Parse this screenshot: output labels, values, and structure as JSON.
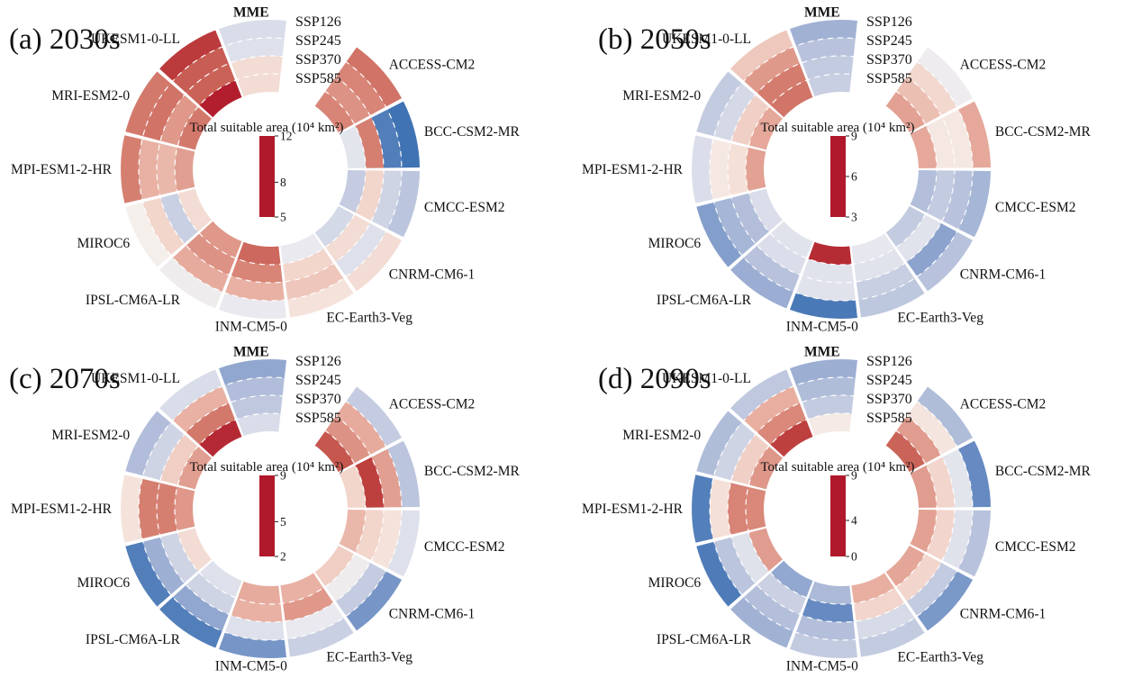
{
  "figure": {
    "background": "#ffffff"
  },
  "colormap": {
    "stops": [
      [
        0.0,
        "#b0182b"
      ],
      [
        0.125,
        "#c04a44"
      ],
      [
        0.25,
        "#d47c6e"
      ],
      [
        0.375,
        "#e9b3a5"
      ],
      [
        0.47,
        "#f5e2da"
      ],
      [
        0.5,
        "#f5efec"
      ],
      [
        0.53,
        "#e8e9ef"
      ],
      [
        0.625,
        "#c6cde1"
      ],
      [
        0.75,
        "#9badd2"
      ],
      [
        0.875,
        "#6288c0"
      ],
      [
        1.0,
        "#2f68ad"
      ]
    ]
  },
  "chart_data": [
    {
      "type": "heatmap",
      "title": "(a) 2030s",
      "legend_title": "Total suitable area (10⁴ km²)",
      "scale": {
        "min": 5,
        "max": 12,
        "ticks": [
          12,
          8,
          5
        ]
      },
      "rings": [
        "SSP126",
        "SSP245",
        "SSP370",
        "SSP585"
      ],
      "models": [
        "MME",
        "ACCESS-CM2",
        "BCC-CSM2-MR",
        "CMCC-ESM2",
        "CNRM-CM6-1",
        "EC-Earth3-Veg",
        "INM-CM5-0",
        "IPSL-CM6A-LR",
        "MIROC6",
        "MPI-ESM1-2-HR",
        "MRI-ESM2-0",
        "UKESM1-0-LL"
      ],
      "values": {
        "MME": [
          9.0,
          8.9,
          8.2,
          8.2
        ],
        "ACCESS-CM2": [
          6.6,
          6.9,
          7.1,
          6.9
        ],
        "BCC-CSM2-MR": [
          11.7,
          11.4,
          6.8,
          8.8
        ],
        "CMCC-ESM2": [
          9.6,
          9.2,
          8.1,
          9.4
        ],
        "CNRM-CM6-1": [
          8.2,
          8.9,
          8.2,
          9.1
        ],
        "EC-Earth3-Veg": [
          8.3,
          7.9,
          8.1,
          8.7
        ],
        "INM-CM5-0": [
          8.7,
          7.6,
          6.9,
          6.4
        ],
        "IPSL-CM6A-LR": [
          8.6,
          7.5,
          7.1,
          7.2
        ],
        "MIROC6": [
          8.5,
          8.1,
          9.3,
          8.2
        ],
        "MPI-ESM1-2-HR": [
          6.8,
          7.6,
          7.7,
          7.3
        ],
        "MRI-ESM2-0": [
          6.7,
          6.6,
          7.2,
          6.7
        ],
        "UKESM1-0-LL": [
          5.6,
          6.2,
          6.3,
          5.1
        ]
      }
    },
    {
      "type": "heatmap",
      "title": "(b) 2050s",
      "legend_title": "Total suitable area (10⁴ km²)",
      "scale": {
        "min": 3,
        "max": 9,
        "ticks": [
          9,
          6,
          3
        ]
      },
      "rings": [
        "SSP126",
        "SSP245",
        "SSP370",
        "SSP585"
      ],
      "models": [
        "MME",
        "ACCESS-CM2",
        "BCC-CSM2-MR",
        "CMCC-ESM2",
        "CNRM-CM6-1",
        "EC-Earth3-Veg",
        "INM-CM5-0",
        "IPSL-CM6A-LR",
        "MIROC6",
        "MPI-ESM1-2-HR",
        "MRI-ESM2-0",
        "UKESM1-0-LL"
      ],
      "values": {
        "MME": [
          7.4,
          7.0,
          6.8,
          6.7
        ],
        "ACCESS-CM2": [
          6.1,
          5.7,
          5.4,
          5.0
        ],
        "BCC-CSM2-MR": [
          5.1,
          5.9,
          5.9,
          5.1
        ],
        "CMCC-ESM2": [
          7.3,
          7.0,
          6.8,
          7.1
        ],
        "CNRM-CM6-1": [
          7.0,
          7.7,
          6.3,
          6.8
        ],
        "EC-Earth3-Veg": [
          6.9,
          6.7,
          6.3,
          6.2
        ],
        "INM-CM5-0": [
          8.6,
          6.3,
          6.3,
          3.3
        ],
        "IPSL-CM6A-LR": [
          7.5,
          7.0,
          6.4,
          6.3
        ],
        "MIROC6": [
          7.8,
          7.3,
          7.1,
          6.4
        ],
        "MPI-ESM1-2-HR": [
          6.4,
          5.9,
          5.8,
          5.0
        ],
        "MRI-ESM2-0": [
          6.8,
          6.5,
          5.6,
          5.1
        ],
        "UKESM1-0-LL": [
          5.5,
          4.9,
          4.5,
          4.4
        ]
      }
    },
    {
      "type": "heatmap",
      "title": "(c) 2070s",
      "legend_title": "Total suitable area (10⁴ km²)",
      "scale": {
        "min": 2,
        "max": 9,
        "ticks": [
          9,
          5,
          2
        ]
      },
      "rings": [
        "SSP126",
        "SSP245",
        "SSP370",
        "SSP585"
      ],
      "models": [
        "MME",
        "ACCESS-CM2",
        "BCC-CSM2-MR",
        "CMCC-ESM2",
        "CNRM-CM6-1",
        "EC-Earth3-Veg",
        "INM-CM5-0",
        "IPSL-CM6A-LR",
        "MIROC6",
        "MPI-ESM1-2-HR",
        "MRI-ESM2-0",
        "UKESM1-0-LL"
      ],
      "values": {
        "MME": [
          7.4,
          6.8,
          6.5,
          6.0
        ],
        "ACCESS-CM2": [
          6.4,
          4.5,
          4.1,
          3.1
        ],
        "BCC-CSM2-MR": [
          6.6,
          4.3,
          2.7,
          5.1
        ],
        "CMCC-ESM2": [
          5.9,
          5.3,
          5.1,
          4.7
        ],
        "CNRM-CM6-1": [
          7.8,
          6.4,
          5.6,
          5.0
        ],
        "EC-Earth3-Veg": [
          6.3,
          5.7,
          4.2,
          4.6
        ],
        "INM-CM5-0": [
          7.8,
          5.9,
          4.6,
          4.5
        ],
        "IPSL-CM6A-LR": [
          8.4,
          7.4,
          6.2,
          5.9
        ],
        "MIROC6": [
          8.4,
          7.2,
          6.2,
          5.2
        ],
        "MPI-ESM1-2-HR": [
          5.3,
          3.8,
          3.8,
          4.2
        ],
        "MRI-ESM2-0": [
          6.8,
          6.2,
          5.0,
          4.3
        ],
        "UKESM1-0-LL": [
          6.0,
          4.6,
          3.7,
          2.3
        ]
      }
    },
    {
      "type": "heatmap",
      "title": "(d) 2090s",
      "legend_title": "Total suitable area (10⁴ km²)",
      "scale": {
        "min": 0,
        "max": 9,
        "ticks": [
          9,
          4,
          0
        ]
      },
      "rings": [
        "SSP126",
        "SSP245",
        "SSP370",
        "SSP585"
      ],
      "models": [
        "MME",
        "ACCESS-CM2",
        "BCC-CSM2-MR",
        "CMCC-ESM2",
        "CNRM-CM6-1",
        "EC-Earth3-Veg",
        "INM-CM5-0",
        "IPSL-CM6A-LR",
        "MIROC6",
        "MPI-ESM1-2-HR",
        "MRI-ESM2-0",
        "UKESM1-0-LL"
      ],
      "values": {
        "MME": [
          6.7,
          6.2,
          5.7,
          4.4
        ],
        "ACCESS-CM2": [
          6.2,
          4.3,
          2.9,
          1.7
        ],
        "BCC-CSM2-MR": [
          7.8,
          4.9,
          4.0,
          2.9
        ],
        "CMCC-ESM2": [
          6.0,
          5.0,
          4.0,
          3.0
        ],
        "CNRM-CM6-1": [
          7.4,
          5.7,
          4.0,
          3.1
        ],
        "EC-Earth3-Veg": [
          5.7,
          5.2,
          4.0,
          3.3
        ],
        "INM-CM5-0": [
          5.7,
          6.1,
          7.8,
          6.3
        ],
        "IPSL-CM6A-LR": [
          6.6,
          6.1,
          5.5,
          6.9
        ],
        "MIROC6": [
          8.3,
          5.9,
          5.0,
          2.9
        ],
        "MPI-ESM1-2-HR": [
          8.2,
          4.2,
          2.4,
          2.5
        ],
        "MRI-ESM2-0": [
          6.2,
          5.4,
          3.9,
          2.8
        ],
        "UKESM1-0-LL": [
          5.8,
          3.3,
          2.5,
          0.9
        ]
      }
    }
  ]
}
